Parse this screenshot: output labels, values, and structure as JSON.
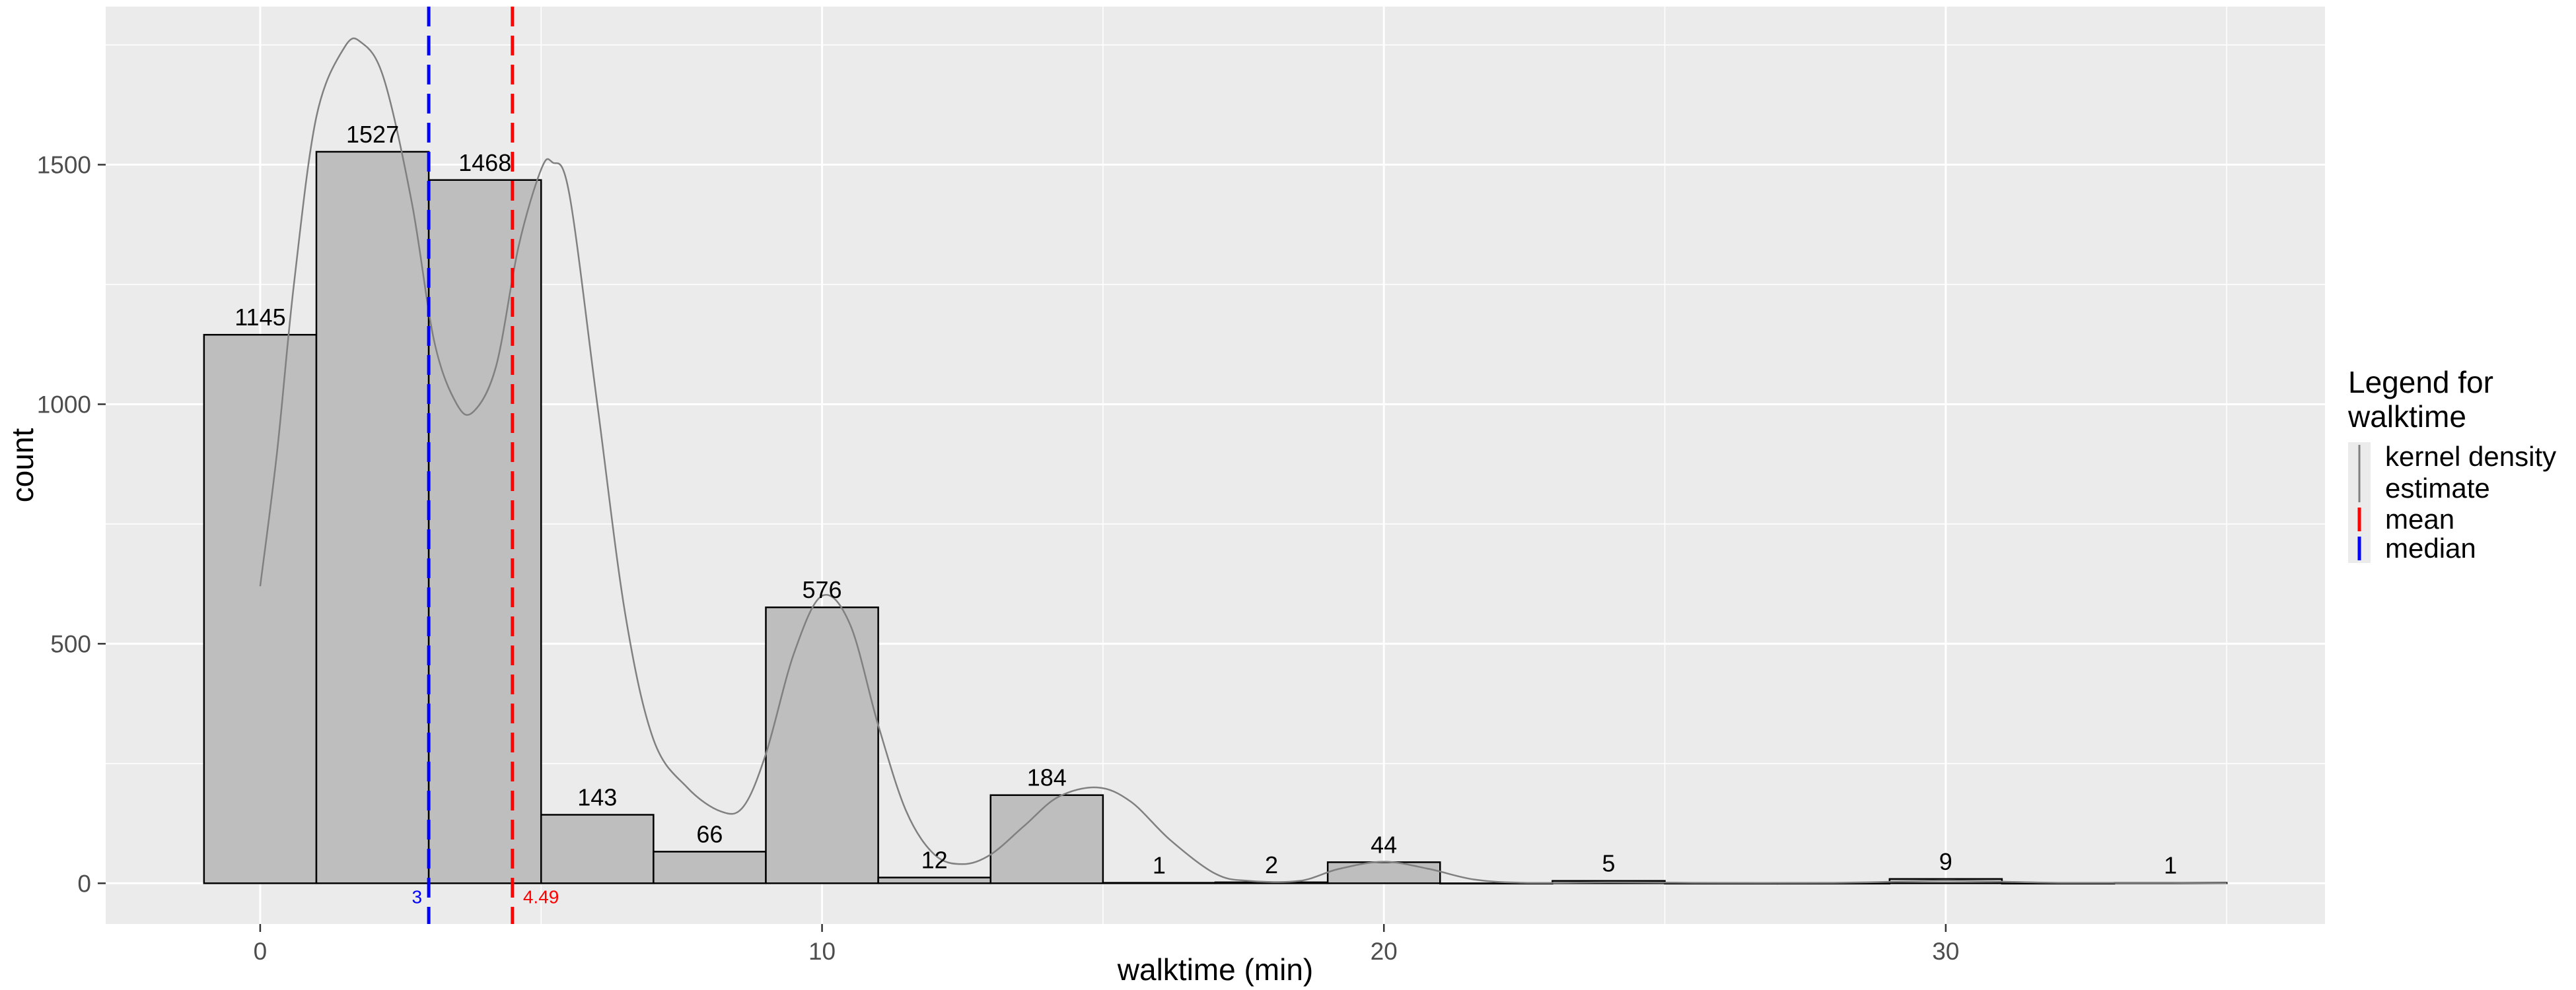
{
  "chart_data": {
    "type": "bar",
    "xlabel": "walktime (min)",
    "ylabel": "count",
    "xlim": [
      -2.75,
      36.75
    ],
    "ylim": [
      -85,
      1830
    ],
    "x_ticks": [
      0,
      10,
      20,
      30
    ],
    "y_ticks": [
      0,
      500,
      1000,
      1500
    ],
    "x_ticks_text": [
      "0",
      "10",
      "20",
      "30"
    ],
    "y_ticks_text": [
      "0",
      "500",
      "1000",
      "1500"
    ],
    "bin_width": 2,
    "bins": [
      {
        "center": 0,
        "count": 1145
      },
      {
        "center": 2,
        "count": 1527
      },
      {
        "center": 4,
        "count": 1468
      },
      {
        "center": 6,
        "count": 143
      },
      {
        "center": 8,
        "count": 66
      },
      {
        "center": 10,
        "count": 576
      },
      {
        "center": 12,
        "count": 12
      },
      {
        "center": 14,
        "count": 184
      },
      {
        "center": 16,
        "count": 1
      },
      {
        "center": 18,
        "count": 2
      },
      {
        "center": 20,
        "count": 44
      },
      {
        "center": 22,
        "count": 0
      },
      {
        "center": 24,
        "count": 5
      },
      {
        "center": 26,
        "count": 0
      },
      {
        "center": 28,
        "count": 0
      },
      {
        "center": 30,
        "count": 9
      },
      {
        "center": 32,
        "count": 0
      },
      {
        "center": 34,
        "count": 1
      }
    ],
    "bar_labels": [
      {
        "center": 0,
        "text": "1145"
      },
      {
        "center": 2,
        "text": "1527"
      },
      {
        "center": 4,
        "text": "1468"
      },
      {
        "center": 6,
        "text": "143"
      },
      {
        "center": 8,
        "text": "66"
      },
      {
        "center": 10,
        "text": "576"
      },
      {
        "center": 12,
        "text": "12"
      },
      {
        "center": 14,
        "text": "184"
      },
      {
        "center": 16,
        "text": "1"
      },
      {
        "center": 18,
        "text": "2"
      },
      {
        "center": 20,
        "text": "44"
      },
      {
        "center": 24,
        "text": "5"
      },
      {
        "center": 30,
        "text": "9"
      },
      {
        "center": 34,
        "text": "1"
      }
    ],
    "density_curve": [
      [
        0,
        620
      ],
      [
        0.3,
        900
      ],
      [
        0.6,
        1250
      ],
      [
        1.0,
        1600
      ],
      [
        1.5,
        1745
      ],
      [
        1.8,
        1755
      ],
      [
        2.2,
        1680
      ],
      [
        2.7,
        1420
      ],
      [
        3.1,
        1130
      ],
      [
        3.5,
        1000
      ],
      [
        3.8,
        985
      ],
      [
        4.2,
        1080
      ],
      [
        4.6,
        1330
      ],
      [
        5.0,
        1490
      ],
      [
        5.2,
        1505
      ],
      [
        5.5,
        1440
      ],
      [
        6.0,
        1000
      ],
      [
        6.5,
        560
      ],
      [
        7.0,
        300
      ],
      [
        7.6,
        200
      ],
      [
        8.2,
        150
      ],
      [
        8.6,
        160
      ],
      [
        9.0,
        270
      ],
      [
        9.5,
        480
      ],
      [
        10.0,
        600
      ],
      [
        10.5,
        540
      ],
      [
        11.0,
        330
      ],
      [
        11.5,
        150
      ],
      [
        12.0,
        60
      ],
      [
        12.5,
        40
      ],
      [
        13.0,
        60
      ],
      [
        13.6,
        120
      ],
      [
        14.2,
        180
      ],
      [
        14.9,
        200
      ],
      [
        15.5,
        170
      ],
      [
        16.2,
        90
      ],
      [
        17.0,
        20
      ],
      [
        17.6,
        5
      ],
      [
        18.5,
        5
      ],
      [
        19.2,
        30
      ],
      [
        20.0,
        45
      ],
      [
        20.8,
        30
      ],
      [
        21.6,
        8
      ],
      [
        22.5,
        1
      ],
      [
        24.0,
        2
      ],
      [
        25.5,
        1
      ],
      [
        28.0,
        1
      ],
      [
        29.3,
        4
      ],
      [
        30.0,
        6
      ],
      [
        30.8,
        4
      ],
      [
        32.0,
        1
      ],
      [
        34.0,
        1
      ],
      [
        35.0,
        0
      ]
    ],
    "mean": 4.49,
    "median": 3,
    "mean_label": "4.49",
    "median_label": "3",
    "legend": {
      "title_lines": [
        "Legend for",
        "walktime"
      ],
      "items": [
        {
          "lines": [
            "kernel density",
            "estimate"
          ],
          "color": "#808080",
          "key": "density"
        },
        {
          "lines": [
            "mean"
          ],
          "color": "#ff0000",
          "key": "mean"
        },
        {
          "lines": [
            "median"
          ],
          "color": "#0000ff",
          "key": "median"
        }
      ]
    },
    "colors": {
      "panel": "#ebebeb",
      "grid": "#ffffff",
      "bar_fill": "#bebebe",
      "bar_stroke": "#000000",
      "density": "#808080",
      "mean": "#ff0000",
      "median": "#0000ff"
    },
    "grid": true,
    "legend_position": "right"
  }
}
